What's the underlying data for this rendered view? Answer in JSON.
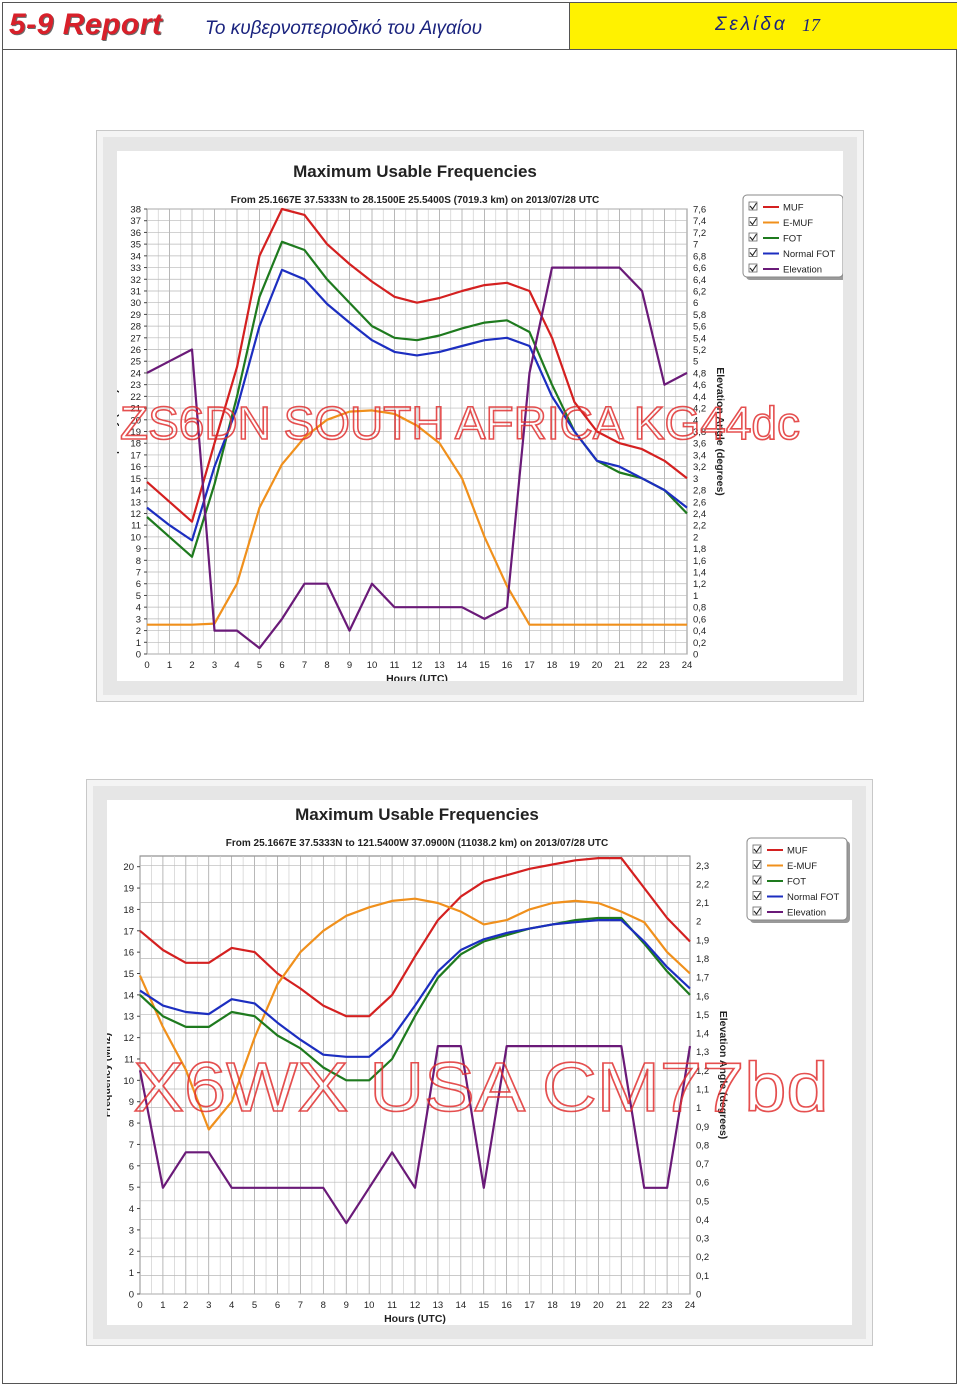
{
  "header": {
    "brand_main": "5-9 Report",
    "brand_sub": "Το κυβερνοπεριοδικό του Αιγαίου",
    "page_label": "Σελίδα",
    "page_number": "17"
  },
  "colors": {
    "MUF": "#d42020",
    "E-MUF": "#f0901c",
    "FOT": "#1e7a1e",
    "Normal FOT": "#1c2ec0",
    "Elevation": "#6a1a78",
    "watermark": "#e03030",
    "header_yellow": "#fff200"
  },
  "chart_data": [
    {
      "type": "line",
      "title": "Maximum Usable Frequencies",
      "subtitle": "From  25.1667E 37.5333N to  28.1500E 25.5400S (7019.3 km) on 2013/07/28 UTC",
      "xlabel": "Hours (UTC)",
      "ylabel": "Frequency (MHz)",
      "y2label": "Elevation Angle (degrees)",
      "watermark": "ZS6DN SOUTH AFRICA KG44dc",
      "xlim": [
        0,
        24
      ],
      "ylim": [
        0,
        38
      ],
      "y2lim": [
        0,
        7.6
      ],
      "y2_step": 0.2,
      "x": [
        0,
        1,
        2,
        3,
        4,
        5,
        6,
        7,
        8,
        9,
        10,
        11,
        12,
        13,
        14,
        15,
        16,
        17,
        18,
        19,
        20,
        21,
        22,
        23,
        24
      ],
      "legend": [
        "MUF",
        "E-MUF",
        "FOT",
        "Normal FOT",
        "Elevation"
      ],
      "legend_position": "right-top",
      "grid": true,
      "series": [
        {
          "name": "MUF",
          "axis": "left",
          "values": [
            14.7,
            13,
            11.3,
            18,
            24.5,
            34,
            38,
            37.5,
            35,
            33.3,
            31.8,
            30.5,
            30,
            30.4,
            31,
            31.5,
            31.7,
            31,
            27,
            21.5,
            19,
            18,
            17.5,
            16.5,
            15
          ]
        },
        {
          "name": "E-MUF",
          "axis": "left",
          "values": [
            2.5,
            2.5,
            2.5,
            2.6,
            6,
            12.5,
            16.2,
            18.5,
            20,
            20.7,
            20.8,
            20.5,
            19.5,
            18,
            15,
            10,
            5.8,
            2.5,
            2.5,
            2.5,
            2.5,
            2.5,
            2.5,
            2.5,
            2.5
          ]
        },
        {
          "name": "FOT",
          "axis": "left",
          "values": [
            11.7,
            10,
            8.3,
            14.5,
            22,
            30.5,
            35.2,
            34.5,
            32,
            30,
            28,
            27,
            26.8,
            27.2,
            27.8,
            28.3,
            28.5,
            27.5,
            23,
            19,
            16.5,
            15.5,
            15,
            14,
            12
          ]
        },
        {
          "name": "Normal FOT",
          "axis": "left",
          "values": [
            12.5,
            11,
            9.7,
            16,
            21,
            28,
            32.8,
            32,
            29.9,
            28.3,
            26.8,
            25.8,
            25.5,
            25.8,
            26.3,
            26.8,
            27,
            26.3,
            22,
            19,
            16.5,
            16,
            15,
            14,
            12.5
          ]
        },
        {
          "name": "Elevation",
          "axis": "right",
          "values": [
            4.8,
            5,
            5.2,
            0.4,
            0.4,
            0.1,
            0.6,
            1.2,
            1.2,
            0.4,
            1.2,
            0.8,
            0.8,
            0.8,
            0.8,
            0.6,
            0.8,
            4.8,
            6.6,
            6.6,
            6.6,
            6.6,
            6.2,
            4.6,
            4.8
          ]
        }
      ]
    },
    {
      "type": "line",
      "title": "Maximum Usable Frequencies",
      "subtitle": "From  25.1667E 37.5333N to 121.5400W 37.0900N (11038.2 km) on 2013/07/28 UTC",
      "xlabel": "Hours (UTC)",
      "ylabel": "Frequency (MHz)",
      "y2label": "Elevation Angle (degrees)",
      "watermark": "X6WX USA CM77bd",
      "xlim": [
        0,
        24
      ],
      "ylim": [
        0,
        20.5
      ],
      "y2lim": [
        0,
        2.35
      ],
      "y2_step": 0.1,
      "x": [
        0,
        1,
        2,
        3,
        4,
        5,
        6,
        7,
        8,
        9,
        10,
        11,
        12,
        13,
        14,
        15,
        16,
        17,
        18,
        19,
        20,
        21,
        22,
        23,
        24
      ],
      "legend": [
        "MUF",
        "E-MUF",
        "FOT",
        "Normal FOT",
        "Elevation"
      ],
      "legend_position": "right-top",
      "grid": true,
      "series": [
        {
          "name": "MUF",
          "axis": "left",
          "values": [
            17,
            16.1,
            15.5,
            15.5,
            16.2,
            16,
            15,
            14.3,
            13.5,
            13,
            13,
            14,
            15.8,
            17.5,
            18.6,
            19.3,
            19.6,
            19.9,
            20.1,
            20.3,
            20.4,
            20.4,
            19,
            17.6,
            16.5
          ]
        },
        {
          "name": "E-MUF",
          "axis": "left",
          "values": [
            14.9,
            12.5,
            10.5,
            7.7,
            9,
            12,
            14.5,
            16,
            17,
            17.7,
            18.1,
            18.4,
            18.5,
            18.3,
            17.9,
            17.3,
            17.5,
            18,
            18.3,
            18.4,
            18.3,
            17.9,
            17.4,
            16,
            15
          ]
        },
        {
          "name": "FOT",
          "axis": "left",
          "values": [
            14,
            13,
            12.5,
            12.5,
            13.2,
            13,
            12.1,
            11.5,
            10.6,
            10,
            10,
            11,
            13,
            14.8,
            15.9,
            16.5,
            16.8,
            17.1,
            17.3,
            17.5,
            17.6,
            17.6,
            16.4,
            15.1,
            14
          ]
        },
        {
          "name": "Normal FOT",
          "axis": "left",
          "values": [
            14.2,
            13.5,
            13.2,
            13.1,
            13.8,
            13.6,
            12.7,
            11.9,
            11.2,
            11.1,
            11.1,
            12,
            13.5,
            15.1,
            16.1,
            16.6,
            16.9,
            17.1,
            17.3,
            17.4,
            17.5,
            17.5,
            16.5,
            15.3,
            14.3
          ]
        },
        {
          "name": "Elevation",
          "axis": "right",
          "values": [
            1.2,
            0.57,
            0.76,
            0.76,
            0.57,
            0.57,
            0.57,
            0.57,
            0.57,
            0.38,
            0.57,
            0.76,
            0.57,
            1.33,
            1.33,
            0.57,
            1.33,
            1.33,
            1.33,
            1.33,
            1.33,
            1.33,
            0.57,
            0.57,
            1.33
          ]
        }
      ]
    }
  ]
}
